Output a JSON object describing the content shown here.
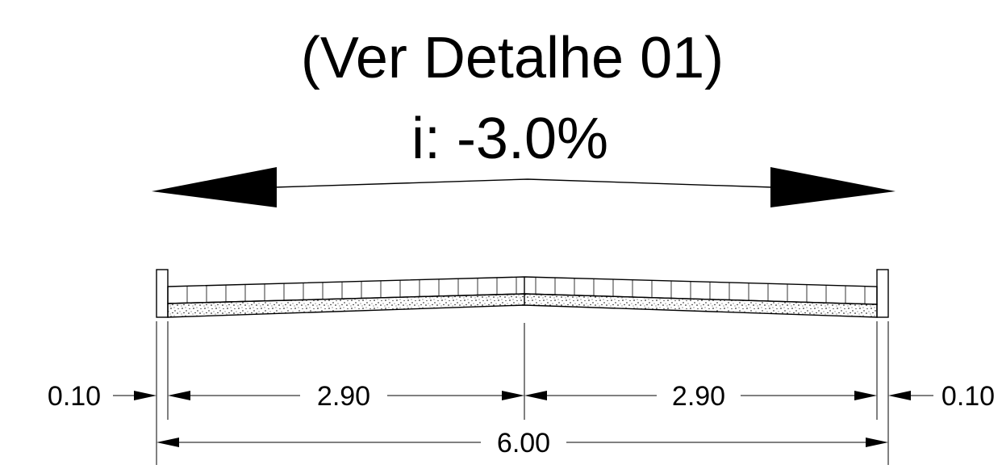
{
  "annotation": {
    "reference": "(Ver Detalhe 01)",
    "slope": "i: -3.0%"
  },
  "dimensions": {
    "left_curb": "0.10",
    "left_lane": "2.90",
    "right_lane": "2.90",
    "right_curb": "0.10",
    "total_width": "6.00"
  }
}
